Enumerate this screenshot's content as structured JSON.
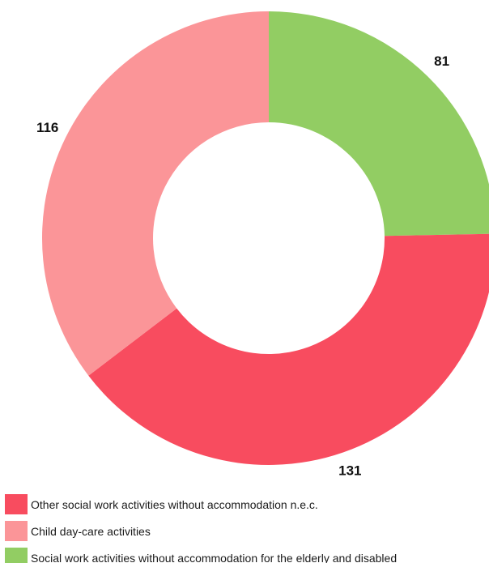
{
  "chart_data": {
    "type": "pie",
    "donut": true,
    "start_angle_deg": 0,
    "direction": "clockwise",
    "legend_position": "bottom-left",
    "slices": [
      {
        "label": "Social work activities without accommodation for the elderly and disabled",
        "value": 81,
        "value_label": "81",
        "color": "#92cd63"
      },
      {
        "label": "Other social work activities without accommodation n.e.c.",
        "value": 131,
        "value_label": "131",
        "color": "#f84c5f"
      },
      {
        "label": "Child day-care activities",
        "value": 116,
        "value_label": "116",
        "color": "#fb9598"
      }
    ]
  },
  "legend": {
    "items": [
      {
        "label": "Other social work activities without accommodation n.e.c.",
        "color": "#f84c5f"
      },
      {
        "label": "Child day-care activities",
        "color": "#fb9598"
      },
      {
        "label": "Social work activities without accommodation for the elderly and disabled",
        "color": "#92cd63"
      }
    ]
  }
}
